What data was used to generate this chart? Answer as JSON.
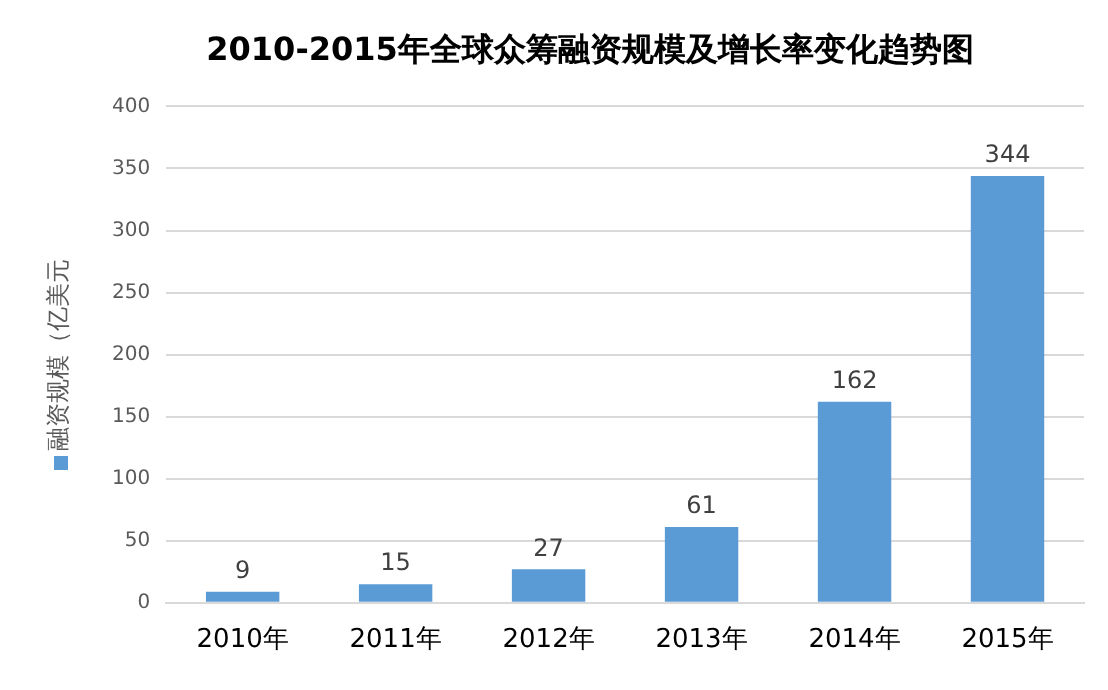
{
  "chart_data": {
    "type": "bar",
    "title": "2010-2015年全球众筹融资规模及增长率变化趋势图",
    "categories": [
      "2010年",
      "2011年",
      "2012年",
      "2013年",
      "2014年",
      "2015年"
    ],
    "ylabel": "融资规模（亿美元",
    "series": [
      {
        "color": "#5b9bd5",
        "values": [
          9,
          15,
          27,
          61,
          162,
          344
        ]
      }
    ],
    "ylim": [
      0,
      400
    ],
    "yticks": [
      0,
      50,
      100,
      150,
      200,
      250,
      300,
      350,
      400
    ],
    "grid": "y",
    "data_labels": true
  }
}
